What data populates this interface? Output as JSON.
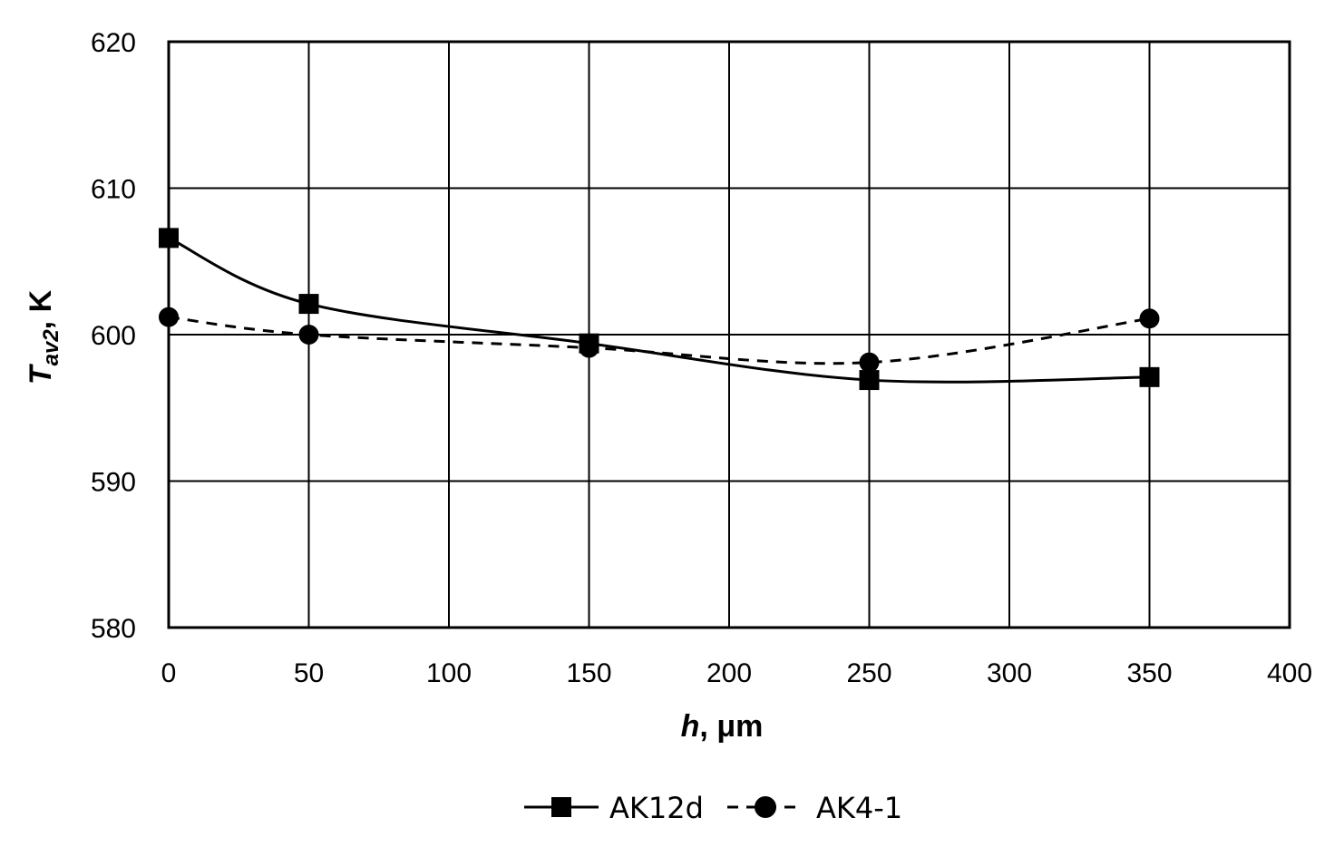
{
  "chart_data": {
    "type": "line",
    "xlabel": {
      "var": "h",
      "rest": ", μm"
    },
    "ylabel": {
      "var": "T",
      "sub": "av2",
      "rest": ", K"
    },
    "xlim": [
      0,
      400
    ],
    "ylim": [
      580,
      620
    ],
    "xticks": [
      0,
      50,
      100,
      150,
      200,
      250,
      300,
      350,
      400
    ],
    "yticks": [
      580,
      590,
      600,
      610,
      620
    ],
    "grid": true,
    "legend_position": "bottom-center",
    "series": [
      {
        "name": "AK12d",
        "marker": "square",
        "line_style": "solid",
        "smooth": true,
        "points": [
          [
            0,
            606.6
          ],
          [
            50,
            602.1
          ],
          [
            150,
            599.4
          ],
          [
            250,
            596.9
          ],
          [
            350,
            597.1
          ]
        ]
      },
      {
        "name": "AK4-1",
        "marker": "circle",
        "line_style": "dashed",
        "smooth": true,
        "points": [
          [
            0,
            601.2
          ],
          [
            50,
            600.0
          ],
          [
            150,
            599.1
          ],
          [
            250,
            598.1
          ],
          [
            350,
            601.1
          ]
        ]
      }
    ],
    "colors": {
      "line": "#000000",
      "grid": "#000000",
      "background": "#ffffff"
    }
  }
}
